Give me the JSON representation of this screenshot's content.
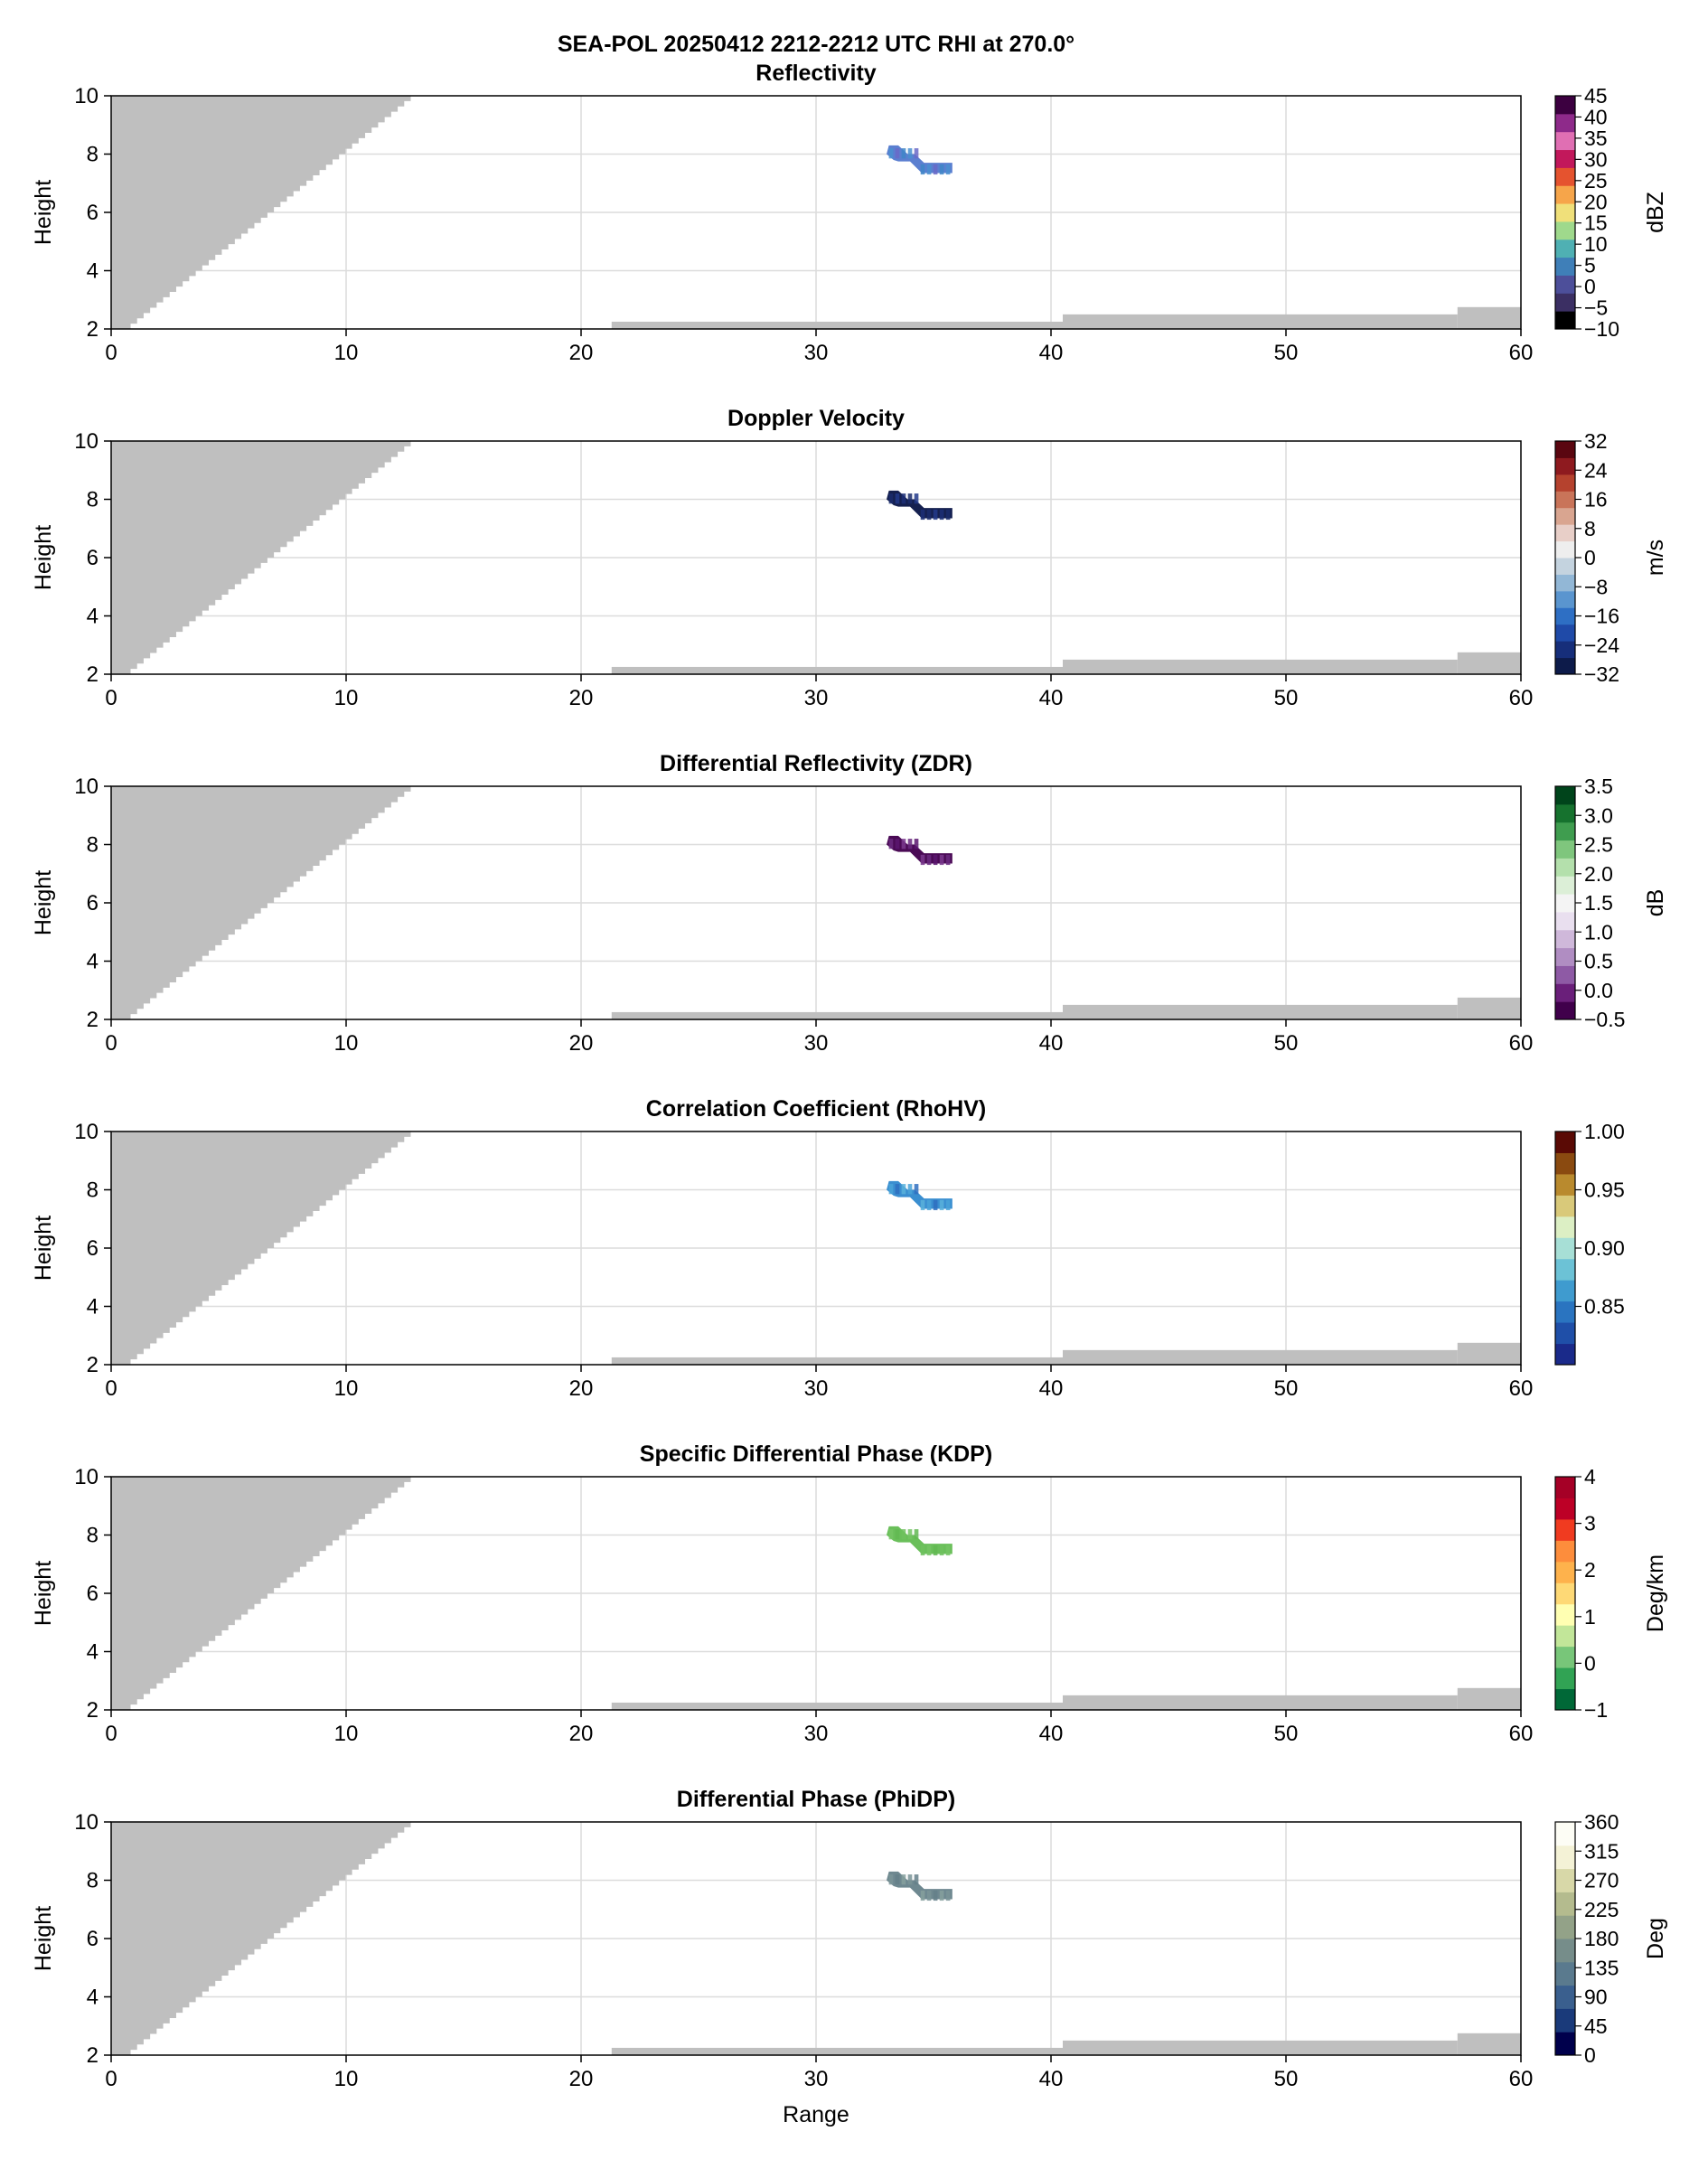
{
  "figure": {
    "title": "SEA-POL 20250412 2212-2212 UTC RHI at 270.0°",
    "xlabel": "Range",
    "ylabel": "Height"
  },
  "chart_data": [
    {
      "type": "heatmap",
      "title": "Reflectivity",
      "xlabel": "",
      "ylabel": "Height",
      "xlim": [
        0,
        60
      ],
      "ylim": [
        2,
        10
      ],
      "xticks": [
        0,
        10,
        20,
        30,
        40,
        50,
        60
      ],
      "yticks": [
        2,
        4,
        6,
        8,
        10
      ],
      "grid": true,
      "colorbar": {
        "label": "dBZ",
        "vmin": -10,
        "vmax": 45,
        "ticks": [
          "−10",
          "−5",
          "0",
          "5",
          "10",
          "15",
          "20",
          "25",
          "30",
          "35",
          "40",
          "45"
        ],
        "tick_values": [
          -10,
          -5,
          0,
          5,
          10,
          15,
          20,
          25,
          30,
          35,
          40,
          45
        ],
        "colors": [
          "#000000",
          "#3b2f63",
          "#4d4f9a",
          "#3f7fb8",
          "#4fb0b3",
          "#9fd98c",
          "#f0e07a",
          "#f6a54a",
          "#e5532f",
          "#c2185b",
          "#e06fb3",
          "#8e2a8a",
          "#3c0040"
        ]
      },
      "echo": {
        "range_km": [
          33.0,
          35.8
        ],
        "height_km": [
          7.5,
          8.3
        ],
        "colors": [
          "#5b7fd0",
          "#4a8fd0",
          "#6a6ac8",
          "#3f86c8"
        ]
      }
    },
    {
      "type": "heatmap",
      "title": "Doppler Velocity",
      "xlabel": "",
      "ylabel": "Height",
      "xlim": [
        0,
        60
      ],
      "ylim": [
        2,
        10
      ],
      "xticks": [
        0,
        10,
        20,
        30,
        40,
        50,
        60
      ],
      "yticks": [
        2,
        4,
        6,
        8,
        10
      ],
      "grid": true,
      "colorbar": {
        "label": "m/s",
        "vmin": -32,
        "vmax": 32,
        "ticks": [
          "−32",
          "−24",
          "−16",
          "−8",
          "0",
          "8",
          "16",
          "24",
          "32"
        ],
        "tick_values": [
          -32,
          -24,
          -16,
          -8,
          0,
          8,
          16,
          24,
          32
        ],
        "colors": [
          "#0d1b4a",
          "#162e7a",
          "#1f4aa8",
          "#2e6fc4",
          "#5a95cf",
          "#92b7d6",
          "#c4d3df",
          "#eeeeee",
          "#e8cfc8",
          "#d9a590",
          "#c97459",
          "#b5422e",
          "#8e1a1f",
          "#5a0610"
        ]
      },
      "echo": {
        "range_km": [
          33.0,
          35.8
        ],
        "height_km": [
          7.5,
          8.3
        ],
        "colors": [
          "#15204f",
          "#1a2b6b",
          "#223a8a",
          "#1c2f75"
        ]
      }
    },
    {
      "type": "heatmap",
      "title": "Differential Reflectivity (ZDR)",
      "xlabel": "",
      "ylabel": "Height",
      "xlim": [
        0,
        60
      ],
      "ylim": [
        2,
        10
      ],
      "xticks": [
        0,
        10,
        20,
        30,
        40,
        50,
        60
      ],
      "yticks": [
        2,
        4,
        6,
        8,
        10
      ],
      "grid": true,
      "colorbar": {
        "label": "dB",
        "vmin": -0.5,
        "vmax": 3.5,
        "ticks": [
          "−0.5",
          "0.0",
          "0.5",
          "1.0",
          "1.5",
          "2.0",
          "2.5",
          "3.0",
          "3.5"
        ],
        "tick_values": [
          -0.5,
          0.0,
          0.5,
          1.0,
          1.5,
          2.0,
          2.5,
          3.0,
          3.5
        ],
        "colors": [
          "#40004b",
          "#6a1f7a",
          "#8e5aa5",
          "#b08dc2",
          "#cfb8da",
          "#e9dfef",
          "#f4f4f4",
          "#dcefd7",
          "#b4e0ac",
          "#7fc67d",
          "#3f9d4f",
          "#16722e",
          "#00441b"
        ]
      },
      "echo": {
        "range_km": [
          33.0,
          35.8
        ],
        "height_km": [
          7.5,
          8.3
        ],
        "colors": [
          "#4a0a55",
          "#6a2a80",
          "#5a1670",
          "#7a3a8e"
        ]
      }
    },
    {
      "type": "heatmap",
      "title": "Correlation Coefficient (RhoHV)",
      "xlabel": "",
      "ylabel": "Height",
      "xlim": [
        0,
        60
      ],
      "ylim": [
        2,
        10
      ],
      "xticks": [
        0,
        10,
        20,
        30,
        40,
        50,
        60
      ],
      "yticks": [
        2,
        4,
        6,
        8,
        10
      ],
      "grid": true,
      "colorbar": {
        "label": "",
        "vmin": 0.8,
        "vmax": 1.0,
        "ticks": [
          "0.85",
          "0.90",
          "0.95",
          "1.00"
        ],
        "tick_values": [
          0.85,
          0.9,
          0.95,
          1.0
        ],
        "colors": [
          "#1a2a8a",
          "#1f4fa8",
          "#2a74c0",
          "#3f9bcf",
          "#6cc2d6",
          "#a7dfd6",
          "#dcefc4",
          "#d9c97a",
          "#b98a2e",
          "#8a4a10",
          "#5a0a05"
        ]
      },
      "echo": {
        "range_km": [
          33.0,
          35.8
        ],
        "height_km": [
          7.5,
          8.3
        ],
        "colors": [
          "#3a8ed0",
          "#4aa3d8",
          "#2f6fc0",
          "#5ab2da"
        ]
      }
    },
    {
      "type": "heatmap",
      "title": "Specific Differential Phase (KDP)",
      "xlabel": "",
      "ylabel": "Height",
      "xlim": [
        0,
        60
      ],
      "ylim": [
        2,
        10
      ],
      "xticks": [
        0,
        10,
        20,
        30,
        40,
        50,
        60
      ],
      "yticks": [
        2,
        4,
        6,
        8,
        10
      ],
      "grid": true,
      "colorbar": {
        "label": "Deg/km",
        "vmin": -1,
        "vmax": 4,
        "ticks": [
          "−1",
          "0",
          "1",
          "2",
          "3",
          "4"
        ],
        "tick_values": [
          -1,
          0,
          1,
          2,
          3,
          4
        ],
        "colors": [
          "#006837",
          "#31a354",
          "#78c679",
          "#c2e699",
          "#ffffb2",
          "#fed976",
          "#feb24c",
          "#fd8d3c",
          "#f03b20",
          "#bd0026",
          "#a50026"
        ]
      },
      "echo": {
        "range_km": [
          33.0,
          35.8
        ],
        "height_km": [
          7.5,
          8.3
        ],
        "colors": [
          "#6abf5a",
          "#74c464",
          "#62b852",
          "#6fc15e"
        ]
      }
    },
    {
      "type": "heatmap",
      "title": "Differential Phase (PhiDP)",
      "xlabel": "Range",
      "ylabel": "Height",
      "xlim": [
        0,
        60
      ],
      "ylim": [
        2,
        10
      ],
      "xticks": [
        0,
        10,
        20,
        30,
        40,
        50,
        60
      ],
      "yticks": [
        2,
        4,
        6,
        8,
        10
      ],
      "grid": true,
      "colorbar": {
        "label": "Deg",
        "vmin": 0,
        "vmax": 360,
        "ticks": [
          "0",
          "45",
          "90",
          "135",
          "180",
          "225",
          "270",
          "315",
          "360"
        ],
        "tick_values": [
          0,
          45,
          90,
          135,
          180,
          225,
          270,
          315,
          360
        ],
        "colors": [
          "#00004c",
          "#1a3a7a",
          "#3a5f8e",
          "#5a7a8e",
          "#768d8a",
          "#93a288",
          "#b4bb8e",
          "#d8d8a8",
          "#f4f2d6",
          "#fdfdf5"
        ]
      },
      "echo": {
        "range_km": [
          33.0,
          35.8
        ],
        "height_km": [
          7.5,
          8.3
        ],
        "colors": [
          "#6e8890",
          "#7a9498",
          "#65808a",
          "#86a09e"
        ]
      }
    }
  ]
}
